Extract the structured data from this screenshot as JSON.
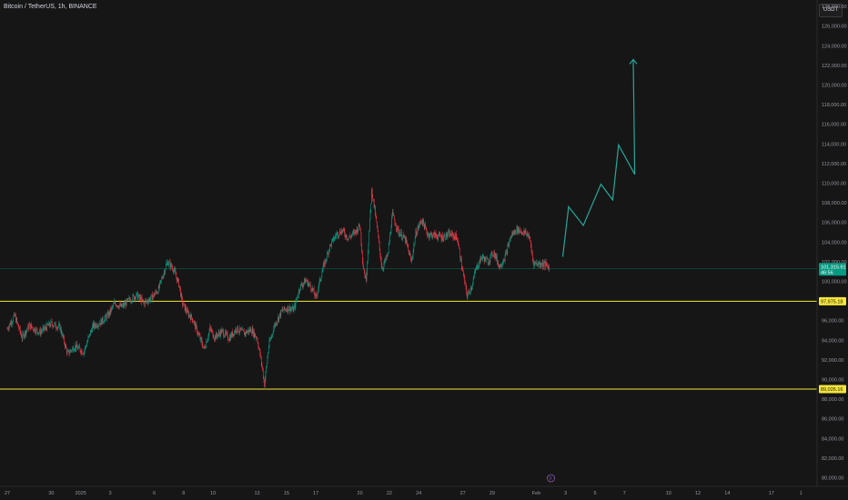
{
  "header": {
    "title": "Bitcoin / TetherUS, 1h, BINANCE",
    "currency_button": "USDT"
  },
  "colors": {
    "background": "#161616",
    "up": "#089981",
    "down": "#f23645",
    "level": "#f5e53b",
    "projection": "#26a69a"
  },
  "chart_data": {
    "type": "candlestick",
    "y_axis": {
      "range": [
        80000,
        128000
      ],
      "ticks": [
        "128,000.00",
        "126,000.00",
        "124,000.00",
        "122,000.00",
        "120,000.00",
        "118,000.00",
        "116,000.00",
        "114,000.00",
        "112,000.00",
        "110,000.00",
        "108,000.00",
        "106,000.00",
        "104,000.00",
        "102,000.00",
        "100,000.00",
        "98,000.00",
        "96,000.00",
        "94,000.00",
        "92,000.00",
        "90,000.00",
        "88,000.00",
        "86,000.00",
        "84,000.00",
        "82,000.00",
        "80,000.00"
      ]
    },
    "x_axis": {
      "ticks": [
        {
          "label": "27",
          "day": 0
        },
        {
          "label": "30",
          "day": 3
        },
        {
          "label": "2025",
          "day": 5
        },
        {
          "label": "3",
          "day": 7
        },
        {
          "label": "6",
          "day": 10
        },
        {
          "label": "8",
          "day": 12
        },
        {
          "label": "10",
          "day": 14
        },
        {
          "label": "13",
          "day": 17
        },
        {
          "label": "15",
          "day": 19
        },
        {
          "label": "17",
          "day": 21
        },
        {
          "label": "20",
          "day": 24
        },
        {
          "label": "22",
          "day": 26
        },
        {
          "label": "24",
          "day": 28
        },
        {
          "label": "27",
          "day": 31
        },
        {
          "label": "29",
          "day": 33
        },
        {
          "label": "Feb",
          "day": 36
        },
        {
          "label": "3",
          "day": 38
        },
        {
          "label": "5",
          "day": 40
        },
        {
          "label": "7",
          "day": 42
        },
        {
          "label": "10",
          "day": 45
        },
        {
          "label": "12",
          "day": 47
        },
        {
          "label": "14",
          "day": 49
        },
        {
          "label": "17",
          "day": 52
        },
        {
          "label": "1",
          "day": 54
        }
      ]
    },
    "price_path": [
      [
        0,
        95200
      ],
      [
        0.5,
        96500
      ],
      [
        1,
        94300
      ],
      [
        1.5,
        95500
      ],
      [
        2.2,
        94800
      ],
      [
        3,
        95700
      ],
      [
        3.6,
        95300
      ],
      [
        4.1,
        92600
      ],
      [
        4.6,
        93400
      ],
      [
        5.2,
        92800
      ],
      [
        5.8,
        95400
      ],
      [
        6.4,
        95900
      ],
      [
        6.9,
        96600
      ],
      [
        7.3,
        97800
      ],
      [
        7.8,
        97400
      ],
      [
        8.3,
        98100
      ],
      [
        8.8,
        98600
      ],
      [
        9.3,
        97800
      ],
      [
        9.8,
        98300
      ],
      [
        10.3,
        99200
      ],
      [
        10.6,
        100700
      ],
      [
        10.9,
        102000
      ],
      [
        11.3,
        101300
      ],
      [
        11.7,
        99600
      ],
      [
        11.9,
        97800
      ],
      [
        12.3,
        96700
      ],
      [
        12.6,
        96200
      ],
      [
        13.0,
        94600
      ],
      [
        13.4,
        93100
      ],
      [
        13.8,
        95200
      ],
      [
        14.1,
        94300
      ],
      [
        14.6,
        94900
      ],
      [
        15.1,
        94200
      ],
      [
        15.6,
        95200
      ],
      [
        16.1,
        94700
      ],
      [
        16.6,
        95100
      ],
      [
        17.0,
        94200
      ],
      [
        17.3,
        91700
      ],
      [
        17.5,
        89500
      ],
      [
        17.8,
        93500
      ],
      [
        18.2,
        95600
      ],
      [
        18.7,
        97000
      ],
      [
        19.1,
        97300
      ],
      [
        19.5,
        97100
      ],
      [
        19.9,
        99400
      ],
      [
        20.3,
        100100
      ],
      [
        20.7,
        99400
      ],
      [
        21.0,
        98300
      ],
      [
        21.4,
        100900
      ],
      [
        21.9,
        103400
      ],
      [
        22.4,
        104800
      ],
      [
        22.8,
        105200
      ],
      [
        23.2,
        104400
      ],
      [
        23.6,
        104900
      ],
      [
        24.0,
        105700
      ],
      [
        24.2,
        101800
      ],
      [
        24.4,
        100000
      ],
      [
        24.6,
        104400
      ],
      [
        24.8,
        109400
      ],
      [
        25.1,
        106200
      ],
      [
        25.5,
        101300
      ],
      [
        25.9,
        102700
      ],
      [
        26.2,
        106800
      ],
      [
        26.6,
        105100
      ],
      [
        27.1,
        104200
      ],
      [
        27.5,
        102000
      ],
      [
        27.8,
        104900
      ],
      [
        28.2,
        106300
      ],
      [
        28.6,
        104800
      ],
      [
        29.1,
        104700
      ],
      [
        29.6,
        104500
      ],
      [
        30.1,
        104800
      ],
      [
        30.6,
        104500
      ],
      [
        31.0,
        100900
      ],
      [
        31.3,
        98500
      ],
      [
        31.6,
        99500
      ],
      [
        31.9,
        101300
      ],
      [
        32.3,
        102500
      ],
      [
        32.7,
        102000
      ],
      [
        33.1,
        103000
      ],
      [
        33.5,
        101500
      ],
      [
        33.9,
        102600
      ],
      [
        34.3,
        104700
      ],
      [
        34.7,
        105300
      ],
      [
        35.1,
        105000
      ],
      [
        35.5,
        104700
      ],
      [
        35.8,
        101900
      ],
      [
        36.2,
        101800
      ],
      [
        36.5,
        101800
      ],
      [
        36.9,
        101400
      ]
    ],
    "projection": [
      {
        "day": 37.8,
        "price": 102500
      },
      {
        "day": 38.2,
        "price": 107600
      },
      {
        "day": 39.2,
        "price": 105700
      },
      {
        "day": 40.4,
        "price": 109900
      },
      {
        "day": 41.2,
        "price": 108300
      },
      {
        "day": 41.6,
        "price": 113900
      },
      {
        "day": 42.7,
        "price": 110900
      },
      {
        "day": 42.6,
        "price": 122600
      }
    ],
    "levels": [
      {
        "value": 97975.18,
        "label": "97,975.18"
      },
      {
        "value": 89026.16,
        "label": "89,026.16"
      }
    ],
    "current_price": {
      "value": 101315.91,
      "label": "101,315.91",
      "countdown": "46:56"
    },
    "marker": {
      "day": 37,
      "glyph": "F"
    }
  }
}
